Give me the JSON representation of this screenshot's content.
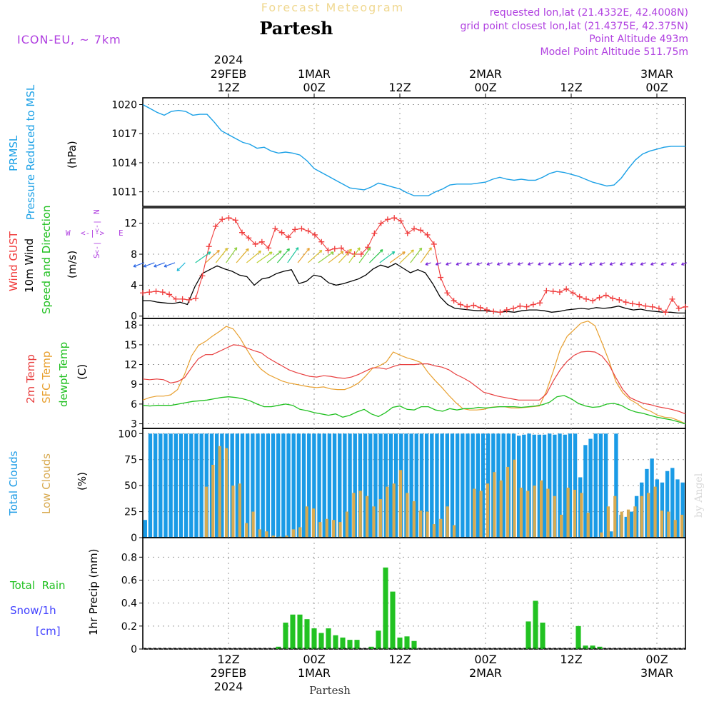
{
  "header": {
    "product": "Forecast Meteogram",
    "location": "Partesh",
    "model": "ICON-EU, ~ 7km",
    "requested": "requested lon,lat (21.4332E, 42.4008N)",
    "grid_point": "grid point closest lon,lat (21.4375E, 42.375N)",
    "point_alt": "Point Altitude 493m",
    "model_alt": "Model Point Altitude 511.75m",
    "footer_location": "Partesh",
    "credit": "by Angel"
  },
  "time_axis": {
    "top_labels": [
      {
        "l1": "2024",
        "l2": "29FEB",
        "l3": "12Z",
        "h": 12
      },
      {
        "l1": "",
        "l2": "1MAR",
        "l3": "00Z",
        "h": 24
      },
      {
        "l1": "",
        "l2": "",
        "l3": "12Z",
        "h": 36
      },
      {
        "l1": "",
        "l2": "2MAR",
        "l3": "00Z",
        "h": 48
      },
      {
        "l1": "",
        "l2": "",
        "l3": "12Z",
        "h": 60
      },
      {
        "l1": "",
        "l2": "3MAR",
        "l3": "00Z",
        "h": 72
      }
    ],
    "bottom_labels": [
      {
        "l1": "12Z",
        "l2": "29FEB",
        "l3": "2024",
        "h": 12
      },
      {
        "l1": "00Z",
        "l2": "1MAR",
        "l3": "",
        "h": 24
      },
      {
        "l1": "12Z",
        "l2": "",
        "l3": "",
        "h": 36
      },
      {
        "l1": "00Z",
        "l2": "2MAR",
        "l3": "",
        "h": 48
      },
      {
        "l1": "12Z",
        "l2": "",
        "l3": "",
        "h": 60
      },
      {
        "l1": "00Z",
        "l2": "3MAR",
        "l3": "",
        "h": 72
      }
    ]
  },
  "panels": {
    "pressure": {
      "label1": "PRMSL",
      "label2": "Pressure Reduced to MSL",
      "unit": "(hPa)"
    },
    "wind": {
      "label1": "Wind GUST",
      "label2": "10m Wind",
      "label3": "Speed and Direction",
      "unit": "(m/s)",
      "compass_n": "N",
      "compass_s": "S",
      "compass_w": "W",
      "compass_e": "E"
    },
    "temp": {
      "label1": "2m Temp",
      "label2": "SFC Temp",
      "label3": "dewpt Temp",
      "unit": "(C)"
    },
    "clouds": {
      "label1": "Total Clouds",
      "label2": "Low Clouds",
      "unit": "(%)"
    },
    "precip": {
      "label1": "Total  Rain",
      "label2": "Snow/1h",
      "label3": "[cm]",
      "unit": "1hr Precip (mm)"
    }
  },
  "colors": {
    "pressure": "#1aa0e6",
    "gust": "#f03c3c",
    "wind": "#000000",
    "sfc": "#e8a030",
    "t2m": "#e84040",
    "dew": "#20c020",
    "total_clouds": "#1a9be6",
    "low_clouds": "#d8aa50",
    "rain": "#22c222",
    "snow": "#4040ff",
    "title": "#f0d890",
    "info": "#b040e0"
  },
  "chart_data": [
    {
      "type": "line",
      "title": "PRMSL Pressure Reduced to MSL",
      "ylabel": "(hPa)",
      "ylim": [
        1009.5,
        1020.7
      ],
      "yticks": [
        1011,
        1014,
        1017,
        1020
      ],
      "x_hours": [
        0,
        1,
        2,
        3,
        4,
        5,
        6,
        7,
        8,
        9,
        10,
        11,
        12,
        13,
        14,
        15,
        16,
        17,
        18,
        19,
        20,
        21,
        22,
        23,
        24,
        25,
        26,
        27,
        28,
        29,
        30,
        31,
        32,
        33,
        34,
        35,
        36,
        37,
        38,
        39,
        40,
        41,
        42,
        43,
        44,
        45,
        46,
        47,
        48,
        49,
        50,
        51,
        52,
        53,
        54,
        55,
        56,
        57,
        58,
        59,
        60,
        61,
        62,
        63,
        64,
        65,
        66,
        67,
        68,
        69,
        70,
        71,
        72,
        73,
        74,
        75,
        76
      ],
      "series": [
        {
          "values": [
            1020.0,
            1019.6,
            1019.2,
            1018.9,
            1019.3,
            1019.4,
            1019.3,
            1018.9,
            1019.0,
            1019.0,
            1018.2,
            1017.3,
            1016.9,
            1016.5,
            1016.1,
            1015.9,
            1015.5,
            1015.6,
            1015.2,
            1015.0,
            1015.1,
            1015.0,
            1014.8,
            1014.2,
            1013.4,
            1013.0,
            1012.6,
            1012.2,
            1011.8,
            1011.4,
            1011.3,
            1011.2,
            1011.5,
            1011.9,
            1011.7,
            1011.5,
            1011.3,
            1010.9,
            1010.6,
            1010.6,
            1010.6,
            1011.0,
            1011.3,
            1011.7,
            1011.8,
            1011.8,
            1011.8,
            1011.9,
            1012.0,
            1012.3,
            1012.5,
            1012.3,
            1012.2,
            1012.3,
            1012.2,
            1012.2,
            1012.5,
            1012.9,
            1013.1,
            1013.0,
            1012.8,
            1012.6,
            1012.3,
            1012.0,
            1011.8,
            1011.6,
            1011.7,
            1012.4,
            1013.4,
            1014.3,
            1014.9,
            1015.2,
            1015.4,
            1015.6,
            1015.7,
            1015.7,
            1015.7
          ]
        }
      ]
    },
    {
      "type": "line",
      "title": "Wind GUST / 10m Wind Speed and Direction",
      "ylabel": "(m/s)",
      "ylim": [
        -0.3,
        14
      ],
      "yticks": [
        0,
        4,
        8,
        12
      ],
      "series": [
        {
          "name": "Wind GUST",
          "values": [
            3.0,
            3.1,
            3.2,
            3.1,
            2.8,
            2.2,
            2.2,
            2.1,
            2.3,
            5.2,
            9.0,
            11.6,
            12.5,
            12.7,
            12.4,
            10.8,
            10.1,
            9.3,
            9.6,
            8.8,
            11.3,
            10.8,
            10.2,
            11.2,
            11.3,
            11.0,
            10.5,
            9.6,
            8.5,
            8.7,
            8.8,
            8.2,
            8.0,
            8.0,
            8.9,
            10.7,
            12.0,
            12.5,
            12.7,
            12.3,
            10.7,
            11.3,
            11.1,
            10.5,
            9.3,
            5.0,
            3.0,
            2.0,
            1.5,
            1.2,
            1.4,
            1.1,
            0.8,
            0.6,
            0.5,
            0.8,
            1.0,
            1.3,
            1.2,
            1.5,
            1.7,
            3.3,
            3.2,
            3.1,
            3.5,
            3.0,
            2.5,
            2.2,
            2.0,
            2.4,
            2.7,
            2.3,
            2.1,
            1.8,
            1.6,
            1.5,
            1.3,
            1.2,
            1.0,
            0.5,
            2.2,
            1.0,
            1.2
          ]
        },
        {
          "name": "10m Wind",
          "values": [
            2.0,
            2.0,
            1.8,
            1.7,
            1.6,
            1.8,
            1.5,
            3.8,
            5.5,
            6.0,
            6.5,
            6.1,
            5.8,
            5.3,
            5.1,
            4.0,
            4.8,
            5.0,
            5.5,
            5.8,
            6.0,
            4.2,
            4.5,
            5.3,
            5.1,
            4.3,
            4.0,
            4.2,
            4.5,
            4.8,
            5.3,
            6.1,
            6.6,
            6.3,
            6.8,
            6.2,
            5.6,
            6.0,
            5.6,
            4.2,
            2.5,
            1.5,
            1.0,
            0.9,
            0.8,
            0.7,
            0.7,
            0.6,
            0.5,
            0.6,
            0.5,
            0.7,
            0.8,
            0.8,
            0.7,
            0.5,
            0.6,
            0.8,
            0.9,
            1.0,
            0.9,
            1.1,
            1.0,
            1.1,
            1.3,
            1.0,
            0.8,
            0.9,
            0.7,
            0.6,
            0.5,
            0.5,
            0.4,
            0.4
          ]
        }
      ],
      "directions": {
        "early": "ENE",
        "day1": "from SW (arrows pointing NE)",
        "after": "from E/SE (weak)"
      }
    },
    {
      "type": "line",
      "title": "2m Temp / SFC Temp / dewpt Temp",
      "ylabel": "(C)",
      "ylim": [
        2.3,
        19
      ],
      "yticks": [
        3,
        6,
        9,
        12,
        15,
        18
      ],
      "series": [
        {
          "name": "2m Temp",
          "values": [
            9.8,
            9.7,
            9.8,
            9.7,
            9.2,
            9.4,
            10.0,
            11.5,
            12.9,
            13.5,
            13.5,
            14.0,
            14.5,
            15.0,
            14.9,
            14.5,
            14.1,
            13.8,
            13.0,
            12.4,
            11.8,
            11.2,
            10.8,
            10.5,
            10.2,
            10.1,
            10.3,
            10.2,
            10.0,
            9.9,
            10.1,
            10.5,
            11.0,
            11.5,
            11.5,
            11.3,
            11.7,
            12.0,
            12.0,
            12.0,
            12.1,
            12.1,
            11.8,
            11.6,
            11.2,
            10.5,
            10.0,
            9.4,
            8.6,
            7.8,
            7.5,
            7.2,
            7.0,
            6.8,
            6.6,
            6.6,
            6.6,
            6.6,
            7.5,
            9.5,
            11.2,
            12.5,
            13.4,
            13.9,
            14.0,
            13.9,
            13.3,
            12.0,
            10.0,
            8.2,
            7.0,
            6.5,
            6.1,
            5.9,
            5.6,
            5.4,
            5.2,
            4.9,
            4.5
          ]
        },
        {
          "name": "SFC Temp",
          "values": [
            6.6,
            7.0,
            7.2,
            7.2,
            7.4,
            8.2,
            10.5,
            13.3,
            14.9,
            15.5,
            16.3,
            17.0,
            17.8,
            17.4,
            16.0,
            14.2,
            12.5,
            11.3,
            10.5,
            10.0,
            9.5,
            9.2,
            9.0,
            8.8,
            8.6,
            8.5,
            8.6,
            8.3,
            8.2,
            8.2,
            8.6,
            9.2,
            10.2,
            11.4,
            11.8,
            12.4,
            13.9,
            13.4,
            13.0,
            12.7,
            12.3,
            10.8,
            9.6,
            8.5,
            7.3,
            6.2,
            5.3,
            5.1,
            5.1,
            5.2,
            5.5,
            5.6,
            5.6,
            5.4,
            5.4,
            5.5,
            5.6,
            5.7,
            7.9,
            11.0,
            14.3,
            16.3,
            17.3,
            18.3,
            18.6,
            17.9,
            15.3,
            12.6,
            9.4,
            7.7,
            6.7,
            6.1,
            5.3,
            4.9,
            4.3,
            4.0,
            3.9,
            3.5,
            3.0
          ]
        },
        {
          "name": "dewpt Temp",
          "values": [
            5.8,
            5.7,
            5.8,
            5.8,
            5.8,
            6.0,
            6.2,
            6.4,
            6.5,
            6.6,
            6.8,
            7.0,
            7.1,
            7.0,
            6.8,
            6.5,
            6.0,
            5.6,
            5.6,
            5.8,
            6.0,
            5.8,
            5.2,
            5.0,
            4.7,
            4.5,
            4.3,
            4.5,
            4.0,
            4.3,
            4.8,
            5.2,
            4.5,
            4.1,
            4.7,
            5.5,
            5.7,
            5.2,
            5.1,
            5.6,
            5.6,
            5.1,
            4.9,
            5.3,
            5.1,
            5.3,
            5.3,
            5.5,
            5.4,
            5.5,
            5.6,
            5.6,
            5.6,
            5.5,
            5.6,
            5.7,
            5.9,
            6.3,
            7.1,
            7.3,
            6.8,
            6.1,
            5.7,
            5.5,
            5.6,
            6.0,
            6.1,
            5.8,
            5.2,
            4.8,
            4.6,
            4.3,
            4.0,
            3.8,
            3.6,
            3.3,
            3.0
          ]
        }
      ]
    },
    {
      "type": "bar",
      "title": "Total Clouds / Low Clouds",
      "ylabel": "(%)",
      "ylim": [
        0,
        105
      ],
      "yticks": [
        0,
        25,
        50,
        75,
        100
      ],
      "series": [
        {
          "name": "Total Clouds",
          "values": [
            17,
            100,
            100,
            100,
            100,
            100,
            100,
            100,
            100,
            100,
            100,
            100,
            100,
            100,
            100,
            100,
            100,
            100,
            100,
            100,
            100,
            100,
            100,
            100,
            100,
            100,
            100,
            100,
            100,
            100,
            100,
            100,
            100,
            100,
            100,
            100,
            100,
            100,
            100,
            100,
            100,
            100,
            100,
            100,
            100,
            100,
            100,
            100,
            100,
            100,
            100,
            100,
            100,
            100,
            100,
            100,
            100,
            100,
            100,
            100,
            100,
            100,
            100,
            100,
            100,
            100,
            100,
            100,
            100,
            100,
            100,
            100,
            100,
            98,
            99,
            100,
            99,
            99,
            99,
            100,
            99,
            100,
            99,
            100,
            100,
            58,
            89,
            95,
            100,
            100,
            100,
            6,
            100,
            22,
            20,
            25,
            40,
            53,
            66,
            76,
            56,
            53,
            64,
            67,
            56,
            53
          ]
        },
        {
          "name": "Low Clouds",
          "values": [
            0,
            0,
            0,
            0,
            0,
            0,
            0,
            0,
            0,
            49,
            70,
            88,
            86,
            50,
            52,
            14,
            25,
            8,
            6,
            2,
            1,
            2,
            8,
            10,
            30,
            28,
            15,
            18,
            17,
            15,
            25,
            43,
            45,
            40,
            30,
            37,
            49,
            52,
            65,
            43,
            35,
            26,
            25,
            13,
            18,
            30,
            12,
            0,
            0,
            47,
            45,
            52,
            63,
            55,
            68,
            75,
            48,
            45,
            50,
            55,
            47,
            40,
            22,
            48,
            46,
            43,
            24,
            0,
            5,
            30,
            40,
            25,
            27,
            30,
            40,
            43,
            49,
            26,
            25,
            17,
            22
          ]
        }
      ]
    },
    {
      "type": "bar",
      "title": "1hr Precip",
      "ylabel": "1hr Precip (mm)",
      "ylim": [
        0,
        0.97
      ],
      "yticks": [
        0,
        0.2,
        0.4,
        0.6,
        0.8
      ],
      "series": [
        {
          "name": "Total Rain",
          "values": [
            0,
            0,
            0,
            0,
            0,
            0,
            0,
            0,
            0,
            0,
            0,
            0,
            0,
            0,
            0,
            0,
            0,
            0,
            0,
            0.02,
            0.23,
            0.3,
            0.3,
            0.26,
            0.18,
            0.14,
            0.18,
            0.12,
            0.1,
            0.08,
            0.08,
            0,
            0.02,
            0.16,
            0.71,
            0.5,
            0.1,
            0.11,
            0.07,
            0,
            0,
            0,
            0,
            0,
            0,
            0,
            0,
            0,
            0,
            0,
            0,
            0,
            0,
            0,
            0.24,
            0.42,
            0.23,
            0,
            0,
            0,
            0,
            0.2,
            0.03,
            0.03,
            0.02,
            0,
            0,
            0,
            0,
            0,
            0,
            0,
            0,
            0,
            0,
            0,
            0
          ]
        },
        {
          "name": "Snow/1h",
          "values": []
        }
      ]
    }
  ]
}
